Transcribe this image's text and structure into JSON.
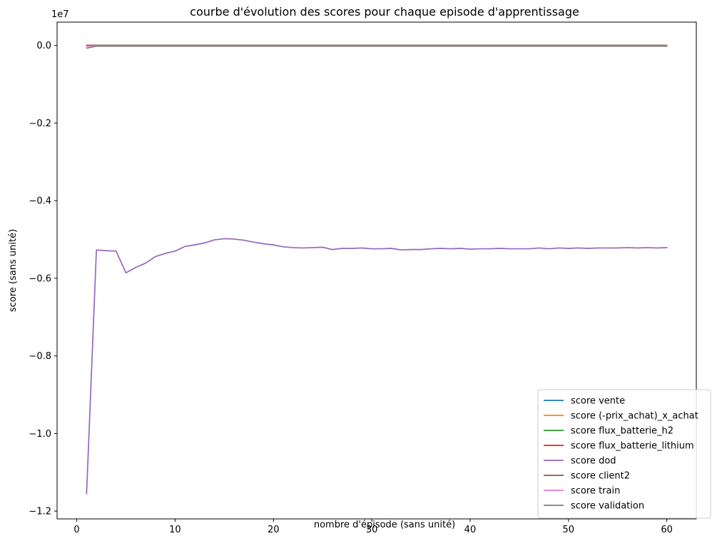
{
  "chart_data": {
    "type": "line",
    "title": "courbe d'évolution des scores pour chaque episode d'apprentissage",
    "xlabel": "nombre d'épisode (sans unité)",
    "ylabel": "score (sans unité)",
    "y_offset_label": "1e7",
    "y_scale": 10000000,
    "xlim": [
      -2,
      63
    ],
    "ylim": [
      -1.22,
      0.06
    ],
    "x_ticks": [
      0,
      10,
      20,
      30,
      40,
      50,
      60
    ],
    "x_tick_labels": [
      "0",
      "10",
      "20",
      "30",
      "40",
      "50",
      "60"
    ],
    "y_ticks": [
      0.0,
      -0.2,
      -0.4,
      -0.6,
      -0.8,
      -1.0,
      -1.2
    ],
    "y_tick_labels": [
      "0.0",
      "−0.2",
      "−0.4",
      "−0.6",
      "−0.8",
      "−1.0",
      "−1.2"
    ],
    "grid": false,
    "legend_position": "bottom-right",
    "x": [
      1,
      2,
      3,
      4,
      5,
      6,
      7,
      8,
      9,
      10,
      11,
      12,
      13,
      14,
      15,
      16,
      17,
      18,
      19,
      20,
      21,
      22,
      23,
      24,
      25,
      26,
      27,
      28,
      29,
      30,
      31,
      32,
      33,
      34,
      35,
      36,
      37,
      38,
      39,
      40,
      41,
      42,
      43,
      44,
      45,
      46,
      47,
      48,
      49,
      50,
      51,
      52,
      53,
      54,
      55,
      56,
      57,
      58,
      59,
      60
    ],
    "series": [
      {
        "name": "score vente",
        "color": "#1f77b4",
        "values": [
          0,
          0,
          0,
          0,
          0,
          0,
          0,
          0,
          0,
          0,
          0,
          0,
          0,
          0,
          0,
          0,
          0,
          0,
          0,
          0,
          0,
          0,
          0,
          0,
          0,
          0,
          0,
          0,
          0,
          0,
          0,
          0,
          0,
          0,
          0,
          0,
          0,
          0,
          0,
          0,
          0,
          0,
          0,
          0,
          0,
          0,
          0,
          0,
          0,
          0,
          0,
          0,
          0,
          0,
          0,
          0,
          0,
          0,
          0,
          0
        ]
      },
      {
        "name": "score (-prix_achat)_x_achat",
        "color": "#ff7f0e",
        "values": [
          -0.001,
          -0.001,
          -0.001,
          -0.001,
          -0.001,
          -0.001,
          -0.001,
          -0.001,
          -0.001,
          -0.001,
          -0.001,
          -0.001,
          -0.001,
          -0.001,
          -0.001,
          -0.001,
          -0.001,
          -0.001,
          -0.001,
          -0.001,
          -0.001,
          -0.001,
          -0.001,
          -0.001,
          -0.001,
          -0.001,
          -0.001,
          -0.001,
          -0.001,
          -0.001,
          -0.001,
          -0.001,
          -0.001,
          -0.001,
          -0.001,
          -0.001,
          -0.001,
          -0.001,
          -0.001,
          -0.001,
          -0.001,
          -0.001,
          -0.001,
          -0.001,
          -0.001,
          -0.001,
          -0.001,
          -0.001,
          -0.001,
          -0.001,
          -0.001,
          -0.001,
          -0.001,
          -0.001,
          -0.001,
          -0.001,
          -0.001,
          -0.001,
          -0.001,
          -0.001
        ]
      },
      {
        "name": "score flux_batterie_h2",
        "color": "#2ca02c",
        "values": [
          0,
          0,
          0,
          0,
          0,
          0,
          0,
          0,
          0,
          0,
          0,
          0,
          0,
          0,
          0,
          0,
          0,
          0,
          0,
          0,
          0,
          0,
          0,
          0,
          0,
          0,
          0,
          0,
          0,
          0,
          0,
          0,
          0,
          0,
          0,
          0,
          0,
          0,
          0,
          0,
          0,
          0,
          0,
          0,
          0,
          0,
          0,
          0,
          0,
          0,
          0,
          0,
          0,
          0,
          0,
          0,
          0,
          0,
          0,
          0
        ]
      },
      {
        "name": "score flux_batterie_lithium",
        "color": "#d62728",
        "values": [
          0,
          0,
          0,
          0,
          0,
          0,
          0,
          0,
          0,
          0,
          0,
          0,
          0,
          0,
          0,
          0,
          0,
          0,
          0,
          0,
          0,
          0,
          0,
          0,
          0,
          0,
          0,
          0,
          0,
          0,
          0,
          0,
          0,
          0,
          0,
          0,
          0,
          0,
          0,
          0,
          0,
          0,
          0,
          0,
          0,
          0,
          0,
          0,
          0,
          0,
          0,
          0,
          0,
          0,
          0,
          0,
          0,
          0,
          0,
          0
        ]
      },
      {
        "name": "score dod",
        "color": "#9467bd",
        "values": [
          -1.155,
          -0.527,
          -0.529,
          -0.53,
          -0.586,
          -0.572,
          -0.561,
          -0.544,
          -0.536,
          -0.53,
          -0.518,
          -0.514,
          -0.509,
          -0.501,
          -0.498,
          -0.499,
          -0.502,
          -0.507,
          -0.511,
          -0.514,
          -0.519,
          -0.521,
          -0.522,
          -0.521,
          -0.52,
          -0.526,
          -0.523,
          -0.523,
          -0.522,
          -0.524,
          -0.524,
          -0.523,
          -0.527,
          -0.526,
          -0.526,
          -0.524,
          -0.523,
          -0.524,
          -0.523,
          -0.525,
          -0.524,
          -0.524,
          -0.523,
          -0.524,
          -0.524,
          -0.524,
          -0.522,
          -0.524,
          -0.522,
          -0.523,
          -0.522,
          -0.523,
          -0.522,
          -0.522,
          -0.522,
          -0.521,
          -0.522,
          -0.521,
          -0.522,
          -0.521
        ]
      },
      {
        "name": "score client2",
        "color": "#8c564b",
        "values": [
          -0.001,
          -0.001,
          -0.001,
          -0.001,
          -0.001,
          -0.001,
          -0.001,
          -0.001,
          -0.001,
          -0.001,
          -0.001,
          -0.001,
          -0.001,
          -0.001,
          -0.001,
          -0.001,
          -0.001,
          -0.001,
          -0.001,
          -0.001,
          -0.001,
          -0.001,
          -0.001,
          -0.001,
          -0.001,
          -0.001,
          -0.001,
          -0.001,
          -0.001,
          -0.001,
          -0.001,
          -0.001,
          -0.001,
          -0.001,
          -0.001,
          -0.001,
          -0.001,
          -0.001,
          -0.001,
          -0.001,
          -0.001,
          -0.001,
          -0.001,
          -0.001,
          -0.001,
          -0.001,
          -0.001,
          -0.001,
          -0.001,
          -0.001,
          -0.001,
          -0.001,
          -0.001,
          -0.001,
          -0.001,
          -0.001,
          -0.001,
          -0.001,
          -0.001,
          -0.001
        ]
      },
      {
        "name": "score train",
        "color": "#e377c2",
        "values": [
          -0.002,
          -0.001,
          -0.001,
          -0.001,
          -0.001,
          -0.001,
          -0.001,
          -0.001,
          -0.001,
          -0.001,
          -0.001,
          -0.001,
          -0.001,
          -0.001,
          -0.001,
          -0.001,
          -0.001,
          -0.001,
          -0.001,
          -0.001,
          -0.001,
          -0.001,
          -0.001,
          -0.001,
          -0.001,
          -0.001,
          -0.001,
          -0.001,
          -0.001,
          -0.001,
          -0.001,
          -0.001,
          -0.001,
          -0.001,
          -0.001,
          -0.001,
          -0.001,
          -0.001,
          -0.001,
          -0.001,
          -0.001,
          -0.001,
          -0.001,
          -0.001,
          -0.001,
          -0.001,
          -0.001,
          -0.001,
          -0.001,
          -0.001,
          -0.001,
          -0.001,
          -0.001,
          -0.001,
          -0.001,
          -0.001,
          -0.001,
          -0.001,
          -0.001,
          -0.001
        ]
      },
      {
        "name": "score validation",
        "color": "#7f7f7f",
        "values": [
          -0.007,
          -0.002,
          -0.002,
          -0.002,
          -0.002,
          -0.002,
          -0.002,
          -0.002,
          -0.002,
          -0.002,
          -0.002,
          -0.002,
          -0.002,
          -0.002,
          -0.002,
          -0.002,
          -0.002,
          -0.002,
          -0.002,
          -0.002,
          -0.002,
          -0.002,
          -0.002,
          -0.002,
          -0.002,
          -0.002,
          -0.002,
          -0.002,
          -0.002,
          -0.002,
          -0.002,
          -0.002,
          -0.002,
          -0.002,
          -0.002,
          -0.002,
          -0.002,
          -0.002,
          -0.002,
          -0.002,
          -0.002,
          -0.002,
          -0.002,
          -0.002,
          -0.002,
          -0.002,
          -0.002,
          -0.002,
          -0.002,
          -0.002,
          -0.002,
          -0.002,
          -0.002,
          -0.002,
          -0.002,
          -0.002,
          -0.002,
          -0.002,
          -0.002,
          -0.002
        ]
      }
    ]
  }
}
